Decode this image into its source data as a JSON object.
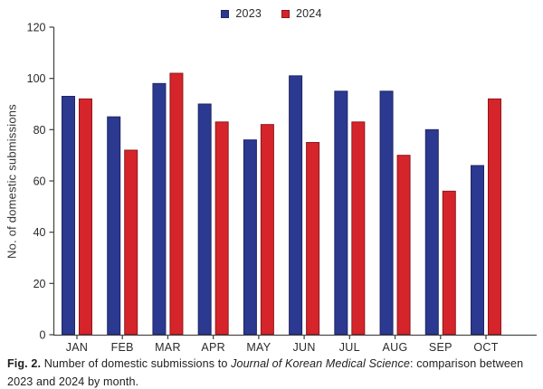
{
  "legend": {
    "items": [
      {
        "label": "2023",
        "color": "#2B3990",
        "border": "#1F2566"
      },
      {
        "label": "2024",
        "color": "#D6242B",
        "border": "#8F181D"
      }
    ]
  },
  "chart_data": {
    "type": "bar",
    "title": "",
    "categories": [
      "JAN",
      "FEB",
      "MAR",
      "APR",
      "MAY",
      "JUN",
      "JUL",
      "AUG",
      "SEP",
      "OCT"
    ],
    "series": [
      {
        "name": "2023",
        "color": "#2B3990",
        "border_color": "#1F2566",
        "values": [
          93,
          85,
          98,
          90,
          76,
          101,
          95,
          95,
          80,
          66
        ]
      },
      {
        "name": "2024",
        "color": "#D6242B",
        "border_color": "#8F181D",
        "values": [
          92,
          72,
          102,
          83,
          82,
          75,
          83,
          70,
          56,
          92
        ]
      }
    ],
    "xlabel": "",
    "ylabel": "No. of domestic submissions",
    "ylim": [
      0,
      120
    ],
    "yticks": [
      0,
      20,
      40,
      60,
      80,
      100,
      120
    ],
    "grid": false,
    "legend_position": "top-center",
    "axis_color": "#4a4a4a",
    "text_color": "#2b292a"
  },
  "caption": {
    "fig": "Fig. 2.",
    "before_italic": " Number of domestic submissions to ",
    "italic": "Journal of Korean Medical Science",
    "after_italic": ": comparison between 2023 and 2024 by month."
  }
}
